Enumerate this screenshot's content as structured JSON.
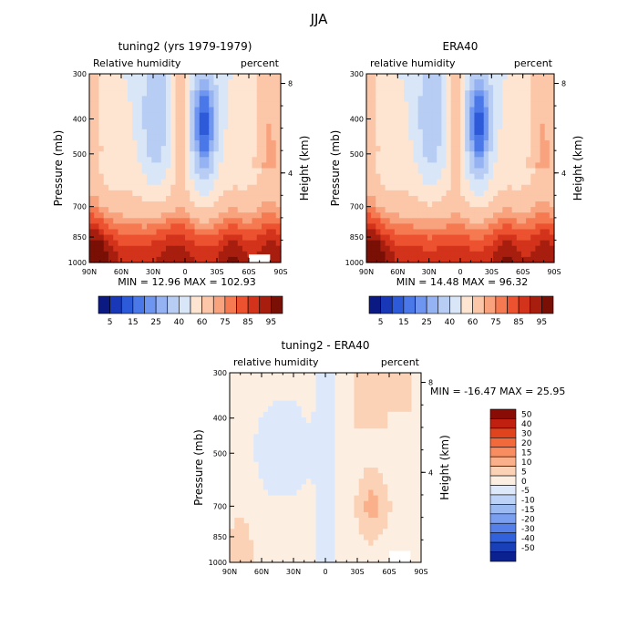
{
  "figure_title": "JJA",
  "chart_data": [
    {
      "type": "heatmap",
      "panel": "top-left",
      "title": "tuning2 (yrs 1979-1979)",
      "left_label": "Relative humidity",
      "right_label": "percent",
      "ylabel": "Pressure (mb)",
      "y2label": "Height (km)",
      "x_ticks": [
        "90N",
        "60N",
        "30N",
        "0",
        "30S",
        "60S",
        "90S"
      ],
      "x_values": [
        90,
        60,
        30,
        0,
        -30,
        -60,
        -90
      ],
      "y_ticks": [
        "300",
        "400",
        "500",
        "700",
        "850",
        "1000"
      ],
      "y_values": [
        300,
        400,
        500,
        700,
        850,
        1000
      ],
      "y2_ticks": [
        "8",
        "4"
      ],
      "y2_values": [
        8,
        4
      ],
      "ylim": [
        1000,
        300
      ],
      "stats": "MIN =   12.96   MAX = 102.93",
      "min": 12.96,
      "max": 102.93,
      "colorbar": {
        "labels": [
          "5",
          "15",
          "25",
          "40",
          "60",
          "75",
          "85",
          "95"
        ],
        "levels": [
          5,
          10,
          15,
          20,
          25,
          30,
          40,
          50,
          60,
          70,
          75,
          80,
          85,
          90,
          95
        ],
        "colors": [
          "#0a1a82",
          "#1838b8",
          "#2c5ad8",
          "#4a78e8",
          "#6e95f0",
          "#95b3f3",
          "#b8cdf3",
          "#d8e6f8",
          "#fde5d2",
          "#fbc7a8",
          "#f9a27e",
          "#f57a52",
          "#ec5230",
          "#d2331a",
          "#a81e0e",
          "#7a0f06"
        ]
      }
    },
    {
      "type": "heatmap",
      "panel": "top-right",
      "title": "ERA40",
      "left_label": "relative humidity",
      "right_label": "percent",
      "ylabel": "Pressure (mb)",
      "y2label": "Height (km)",
      "x_ticks": [
        "90N",
        "60N",
        "30N",
        "0",
        "30S",
        "60S",
        "90S"
      ],
      "x_values": [
        90,
        60,
        30,
        0,
        -30,
        -60,
        -90
      ],
      "y_ticks": [
        "300",
        "400",
        "500",
        "700",
        "850",
        "1000"
      ],
      "y_values": [
        300,
        400,
        500,
        700,
        850,
        1000
      ],
      "y2_ticks": [
        "8",
        "4"
      ],
      "y2_values": [
        8,
        4
      ],
      "ylim": [
        1000,
        300
      ],
      "stats": "MIN =   14.48   MAX =   96.32",
      "min": 14.48,
      "max": 96.32,
      "colorbar": {
        "labels": [
          "5",
          "15",
          "25",
          "40",
          "60",
          "75",
          "85",
          "95"
        ],
        "levels": [
          5,
          10,
          15,
          20,
          25,
          30,
          40,
          50,
          60,
          70,
          75,
          80,
          85,
          90,
          95
        ],
        "colors": [
          "#0a1a82",
          "#1838b8",
          "#2c5ad8",
          "#4a78e8",
          "#6e95f0",
          "#95b3f3",
          "#b8cdf3",
          "#d8e6f8",
          "#fde5d2",
          "#fbc7a8",
          "#f9a27e",
          "#f57a52",
          "#ec5230",
          "#d2331a",
          "#a81e0e",
          "#7a0f06"
        ]
      }
    },
    {
      "type": "heatmap",
      "panel": "bottom",
      "title": "tuning2 - ERA40",
      "left_label": "relative humidity",
      "right_label": "percent",
      "ylabel": "Pressure (mb)",
      "y2label": "Height (km)",
      "x_ticks": [
        "90N",
        "60N",
        "30N",
        "0",
        "30S",
        "60S",
        "90S"
      ],
      "x_values": [
        90,
        60,
        30,
        0,
        -30,
        -60,
        -90
      ],
      "y_ticks": [
        "300",
        "400",
        "500",
        "700",
        "850",
        "1000"
      ],
      "y_values": [
        300,
        400,
        500,
        700,
        850,
        1000
      ],
      "y2_ticks": [
        "8",
        "4"
      ],
      "y2_values": [
        8,
        4
      ],
      "ylim": [
        1000,
        300
      ],
      "stats": "MIN = -16.47   MAX =   25.95",
      "min": -16.47,
      "max": 25.95,
      "colorbar": {
        "labels": [
          "50",
          "40",
          "30",
          "20",
          "15",
          "10",
          "5",
          "0",
          "-5",
          "-10",
          "-15",
          "-20",
          "-30",
          "-40",
          "-50"
        ],
        "levels": [
          50,
          40,
          30,
          20,
          15,
          10,
          5,
          0,
          -5,
          -10,
          -15,
          -20,
          -30,
          -40,
          -50
        ],
        "colors": [
          "#8a0c06",
          "#c0200f",
          "#e0441f",
          "#f26a3c",
          "#f78d60",
          "#fab08a",
          "#fcd2b6",
          "#fdeee2",
          "#dde9fa",
          "#bcd2f6",
          "#9bbaf2",
          "#7a9ff0",
          "#5580ea",
          "#3261dc",
          "#1a40b8",
          "#0c2190"
        ]
      }
    }
  ]
}
